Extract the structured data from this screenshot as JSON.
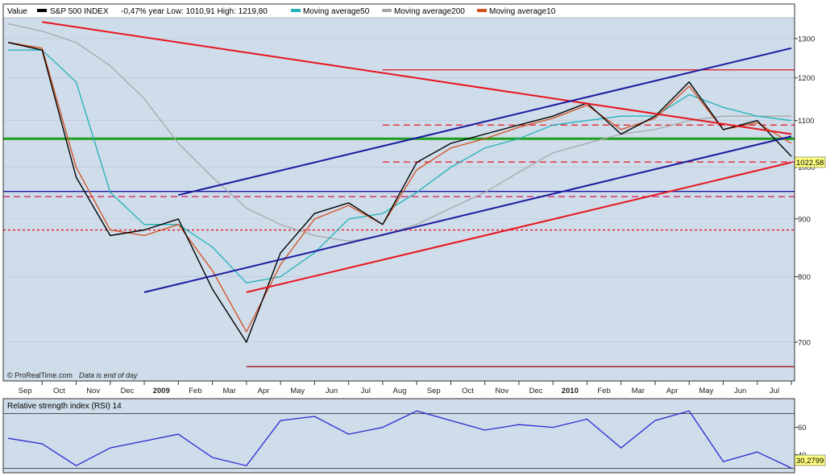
{
  "legend": {
    "value_label": "Value",
    "index_label": "S&P 500 INDEX",
    "stats": "-0,47% year Low: 1010,91 High: 1219,80",
    "ma50_label": "Moving average50",
    "ma200_label": "Moving average200",
    "ma10_label": "Moving average10",
    "colors": {
      "index": "#000000",
      "ma50": "#20b2b8",
      "ma200": "#a8a8a8",
      "ma10": "#d4501e"
    }
  },
  "watermark": {
    "brand": "© ProRealTime.com",
    "note": "Data is end of day"
  },
  "rsi_panel": {
    "title": "Relative strength index (RSI) 14",
    "value_label": "30,2799"
  },
  "last_price_label": "1022,58",
  "chart_data": [
    {
      "type": "line",
      "title": "S&P 500 INDEX",
      "x_tick_labels": [
        "Sep",
        "Oct",
        "Nov",
        "Dec",
        "2009",
        "Feb",
        "Mar",
        "Apr",
        "May",
        "Jun",
        "Jul",
        "Aug",
        "Sep",
        "Oct",
        "Nov",
        "Dec",
        "2010",
        "Feb",
        "Mar",
        "Apr",
        "May",
        "Jun",
        "Jul"
      ],
      "x_tick_bold": [
        "2009",
        "2010"
      ],
      "y_ticks": [
        700,
        800,
        900,
        1000,
        1100,
        1200,
        1300
      ],
      "ylim": [
        650,
        1350
      ],
      "scale": "log",
      "x": [
        "2008-08",
        "2008-09",
        "2008-10",
        "2008-11",
        "2008-12",
        "2009-01",
        "2009-02",
        "2009-03",
        "2009-04",
        "2009-05",
        "2009-06",
        "2009-07",
        "2009-08",
        "2009-09",
        "2009-10",
        "2009-11",
        "2009-12",
        "2010-01",
        "2010-02",
        "2010-03",
        "2010-04",
        "2010-05",
        "2010-06",
        "2010-07"
      ],
      "series": [
        {
          "name": "S&P 500 INDEX",
          "values": [
            1290,
            1270,
            980,
            870,
            880,
            900,
            780,
            700,
            840,
            910,
            930,
            890,
            1010,
            1050,
            1070,
            1090,
            1110,
            1140,
            1070,
            1110,
            1190,
            1080,
            1100,
            1022.58
          ]
        },
        {
          "name": "Moving average50",
          "values": [
            1270,
            1270,
            1190,
            950,
            890,
            890,
            850,
            790,
            800,
            840,
            900,
            910,
            950,
            1000,
            1040,
            1060,
            1090,
            1100,
            1110,
            1110,
            1160,
            1130,
            1110,
            1100
          ]
        },
        {
          "name": "Moving average200",
          "values": [
            1340,
            1320,
            1290,
            1230,
            1150,
            1050,
            980,
            920,
            890,
            870,
            860,
            870,
            890,
            920,
            950,
            990,
            1030,
            1050,
            1070,
            1080,
            1100,
            1110,
            1110,
            1110
          ]
        },
        {
          "name": "Moving average10",
          "values": [
            1290,
            1275,
            1000,
            880,
            870,
            890,
            810,
            715,
            820,
            900,
            925,
            890,
            995,
            1040,
            1060,
            1085,
            1105,
            1135,
            1080,
            1105,
            1180,
            1080,
            1095,
            1050
          ]
        }
      ],
      "horizontal_levels": [
        {
          "value": 1219.8,
          "color": "#e8141e",
          "style": "solid"
        },
        {
          "value": 1090,
          "color": "#e8141e",
          "style": "dashed"
        },
        {
          "value": 1060,
          "color": "#1e9e1e",
          "style": "solid"
        },
        {
          "value": 1010.91,
          "color": "#e8141e",
          "style": "dashed"
        },
        {
          "value": 952,
          "color": "#1a1a9e",
          "style": "solid"
        },
        {
          "value": 942,
          "color": "#d4145a",
          "style": "dashed"
        },
        {
          "value": 880,
          "color": "#e8141e",
          "style": "dotted"
        },
        {
          "value": 666,
          "color": "#a01010",
          "style": "solid"
        }
      ],
      "trend_lines": [
        {
          "color": "#e8141e",
          "from": [
            "2008-09",
            1345
          ],
          "to": [
            "2010-07",
            1070
          ]
        },
        {
          "color": "#1a1a9e",
          "from": [
            "2009-01",
            945
          ],
          "to": [
            "2010-07",
            1275
          ]
        },
        {
          "color": "#1a1a9e",
          "from": [
            "2008-12",
            775
          ],
          "to": [
            "2010-07",
            1065
          ]
        },
        {
          "color": "#e8141e",
          "from": [
            "2009-03",
            775
          ],
          "to": [
            "2010-07",
            1010
          ]
        }
      ]
    },
    {
      "type": "line",
      "title": "Relative strength index (RSI) 14",
      "y_ticks": [
        40,
        60
      ],
      "ylim": [
        28,
        78
      ],
      "x": [
        "2008-08",
        "2008-09",
        "2008-10",
        "2008-11",
        "2008-12",
        "2009-01",
        "2009-02",
        "2009-03",
        "2009-04",
        "2009-05",
        "2009-06",
        "2009-07",
        "2009-08",
        "2009-09",
        "2009-10",
        "2009-11",
        "2009-12",
        "2010-01",
        "2010-02",
        "2010-03",
        "2010-04",
        "2010-05",
        "2010-06",
        "2010-07"
      ],
      "series": [
        {
          "name": "RSI 14",
          "values": [
            52,
            48,
            32,
            45,
            50,
            55,
            38,
            32,
            65,
            68,
            55,
            60,
            72,
            65,
            58,
            62,
            60,
            66,
            45,
            65,
            72,
            35,
            42,
            30.2799
          ]
        }
      ],
      "levels": [
        70,
        30
      ]
    }
  ]
}
